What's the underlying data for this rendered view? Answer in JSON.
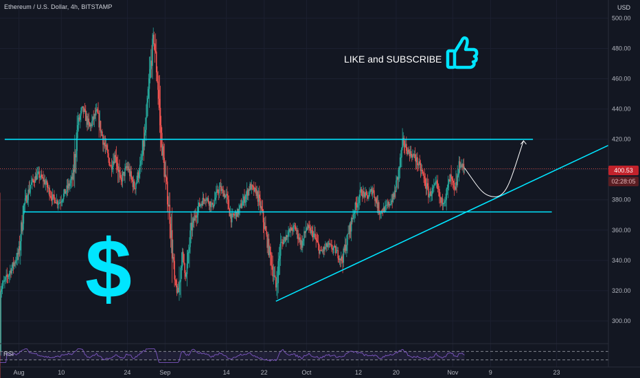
{
  "header": {
    "title": "Ethereum / U.S. Dollar, 4h, BITSTAMP",
    "currency": "USD"
  },
  "promo": {
    "text": "LIKE and SUBSCRIBE",
    "dollar": "$"
  },
  "price_tags": {
    "price": "400.53",
    "countdown": "02:28:05"
  },
  "rsi": {
    "label": "RSI"
  },
  "colors": {
    "background": "#131722",
    "bull": "#26a69a",
    "bear": "#ef5350",
    "trendline": "#00e5ff",
    "rsi": "#7e57c2",
    "price_line": "#ef5350"
  },
  "chart_data": {
    "type": "candlestick",
    "title": "Ethereum / U.S. Dollar, 4h, BITSTAMP",
    "y_axis": {
      "unit": "USD",
      "ticks": [
        300,
        320,
        340,
        360,
        380,
        400,
        420,
        440,
        460,
        480,
        500
      ],
      "tick_labels": [
        "300.00",
        "320.00",
        "340.00",
        "360.00",
        "380.00",
        "400.00",
        "420.00",
        "440.00",
        "460.00",
        "480.00",
        "500.00"
      ],
      "range": [
        285,
        512
      ]
    },
    "x_axis": {
      "tick_labels": [
        "Aug",
        "10",
        "24",
        "Sep",
        "14",
        "22",
        "Oct",
        "12",
        "20",
        "Nov",
        "9",
        "23"
      ],
      "tick_positions_day": [
        0,
        9,
        23,
        31,
        44,
        52,
        61,
        72,
        80,
        92,
        100,
        114
      ],
      "range_day": [
        -4,
        125
      ]
    },
    "last_price": 400.53,
    "price_anchors": [
      [
        -4,
        320
      ],
      [
        -1.5,
        335
      ],
      [
        0,
        345
      ],
      [
        1,
        375
      ],
      [
        2.5,
        390
      ],
      [
        4,
        397
      ],
      [
        5.5,
        392
      ],
      [
        7,
        382
      ],
      [
        8.5,
        378
      ],
      [
        10,
        386
      ],
      [
        11.5,
        395
      ],
      [
        12.5,
        430
      ],
      [
        13.5,
        440
      ],
      [
        15,
        428
      ],
      [
        16.5,
        438
      ],
      [
        18,
        418
      ],
      [
        19.5,
        402
      ],
      [
        20.5,
        410
      ],
      [
        21.5,
        392
      ],
      [
        23,
        402
      ],
      [
        24.5,
        388
      ],
      [
        26,
        405
      ],
      [
        27,
        430
      ],
      [
        28,
        470
      ],
      [
        28.6,
        488
      ],
      [
        29.5,
        455
      ],
      [
        30.2,
        420
      ],
      [
        31,
        395
      ],
      [
        32,
        370
      ],
      [
        33,
        325
      ],
      [
        33.8,
        318
      ],
      [
        34.6,
        345
      ],
      [
        35.5,
        330
      ],
      [
        36.5,
        360
      ],
      [
        38,
        375
      ],
      [
        39.5,
        382
      ],
      [
        41,
        376
      ],
      [
        42.5,
        388
      ],
      [
        44,
        382
      ],
      [
        45,
        368
      ],
      [
        46.5,
        372
      ],
      [
        48,
        382
      ],
      [
        49,
        389
      ],
      [
        50.5,
        384
      ],
      [
        51.5,
        372
      ],
      [
        52.5,
        355
      ],
      [
        53.5,
        340
      ],
      [
        54.5,
        322
      ],
      [
        55.5,
        350
      ],
      [
        57,
        358
      ],
      [
        58.5,
        362
      ],
      [
        60,
        350
      ],
      [
        61,
        362
      ],
      [
        62.5,
        357
      ],
      [
        64,
        345
      ],
      [
        65.5,
        350
      ],
      [
        67,
        347
      ],
      [
        68.5,
        340
      ],
      [
        69.5,
        352
      ],
      [
        71,
        372
      ],
      [
        72.5,
        385
      ],
      [
        74,
        382
      ],
      [
        75,
        387
      ],
      [
        76.5,
        372
      ],
      [
        78,
        375
      ],
      [
        79.5,
        382
      ],
      [
        80.5,
        398
      ],
      [
        81.5,
        418
      ],
      [
        82.5,
        412
      ],
      [
        84,
        408
      ],
      [
        85.5,
        398
      ],
      [
        87,
        383
      ],
      [
        88.5,
        390
      ],
      [
        89.5,
        378
      ],
      [
        90.5,
        382
      ],
      [
        91.5,
        395
      ],
      [
        92.5,
        385
      ],
      [
        93.5,
        404
      ],
      [
        94.5,
        400.53
      ]
    ],
    "drawings": {
      "resistance": {
        "value": 420,
        "from_day": -3,
        "to_day": 109
      },
      "support": {
        "value": 372,
        "from_day": 1,
        "to_day": 113
      },
      "trendline": {
        "from": [
          54.5,
          313
        ],
        "to": [
          125,
          416
        ]
      },
      "projection": [
        [
          94.5,
          401
        ],
        [
          97.5,
          388
        ],
        [
          101,
          382
        ],
        [
          104.5,
          396
        ],
        [
          107,
          419
        ]
      ]
    },
    "rsi_band": [
      30,
      70
    ]
  }
}
